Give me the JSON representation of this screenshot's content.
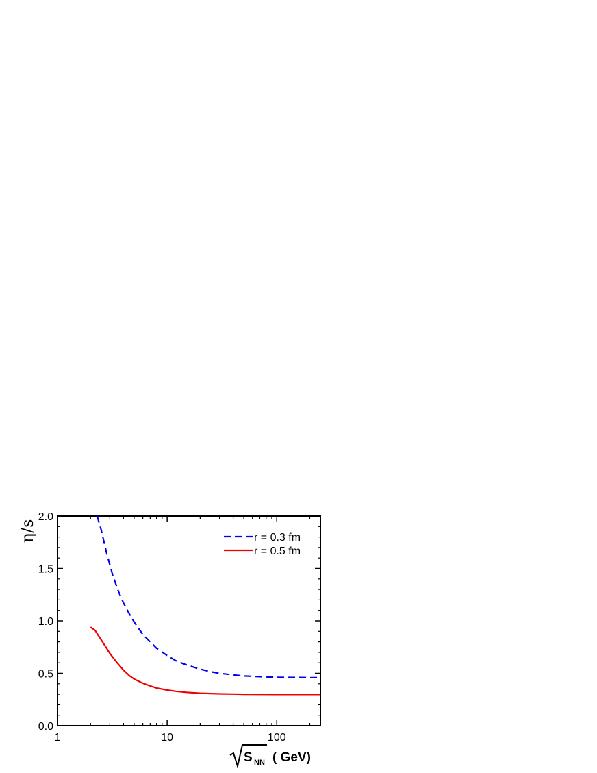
{
  "chart_data": {
    "type": "line",
    "xscale": "log",
    "xlim": [
      1,
      250
    ],
    "ylim": [
      0.0,
      2.0
    ],
    "x_ticks": [
      {
        "value": 1,
        "label": "1"
      },
      {
        "value": 10,
        "label": "10"
      },
      {
        "value": 100,
        "label": "100"
      }
    ],
    "y_ticks": [
      {
        "value": 0.0,
        "label": "0.0"
      },
      {
        "value": 0.5,
        "label": "0.5"
      },
      {
        "value": 1.0,
        "label": "1.0"
      },
      {
        "value": 1.5,
        "label": "1.5"
      },
      {
        "value": 2.0,
        "label": "2.0"
      }
    ],
    "xlabel": "( GeV)",
    "xlabel_sqrt_symbol": "S",
    "xlabel_sqrt_subscript": "NN",
    "ylabel": "η/s",
    "legend_position": "top-right",
    "series": [
      {
        "name": "r = 0.3 fm",
        "color": "#0000ee",
        "style": "dashed",
        "x": [
          2.3,
          2.5,
          2.8,
          3.2,
          3.6,
          4.0,
          4.5,
          5.0,
          6.0,
          7.0,
          8.0,
          10,
          12,
          15,
          20,
          25,
          30,
          40,
          50,
          70,
          100,
          150,
          200,
          250
        ],
        "y": [
          2.0,
          1.87,
          1.65,
          1.43,
          1.28,
          1.17,
          1.07,
          0.99,
          0.87,
          0.8,
          0.74,
          0.67,
          0.62,
          0.58,
          0.54,
          0.515,
          0.5,
          0.485,
          0.475,
          0.468,
          0.462,
          0.46,
          0.459,
          0.458
        ]
      },
      {
        "name": "r = 0.5 fm",
        "color": "#ee0000",
        "style": "solid",
        "x": [
          2.0,
          2.2,
          2.5,
          2.8,
          3.0,
          3.5,
          4.0,
          4.5,
          5.0,
          6.0,
          7.0,
          8.0,
          10,
          12,
          15,
          20,
          30,
          40,
          50,
          70,
          100,
          150,
          200,
          250
        ],
        "y": [
          0.94,
          0.91,
          0.82,
          0.74,
          0.69,
          0.6,
          0.53,
          0.48,
          0.445,
          0.405,
          0.38,
          0.36,
          0.34,
          0.328,
          0.318,
          0.31,
          0.304,
          0.302,
          0.3,
          0.299,
          0.298,
          0.298,
          0.298,
          0.298
        ]
      }
    ]
  },
  "colors": {
    "axis": "#000000",
    "background": "#ffffff"
  }
}
